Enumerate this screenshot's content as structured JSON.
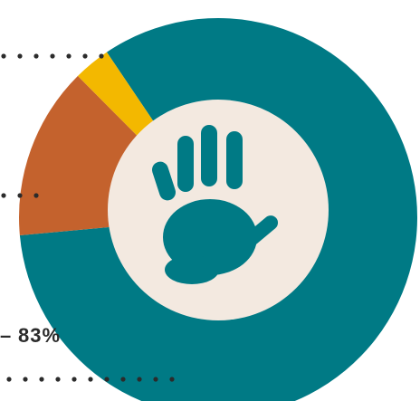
{
  "chart_data": {
    "type": "donut",
    "values": [
      83,
      14,
      3
    ],
    "value_labels": [
      "83%",
      null,
      null
    ],
    "colors": [
      "#007a85",
      "#c4622d",
      "#f3b800"
    ]
  }
}
